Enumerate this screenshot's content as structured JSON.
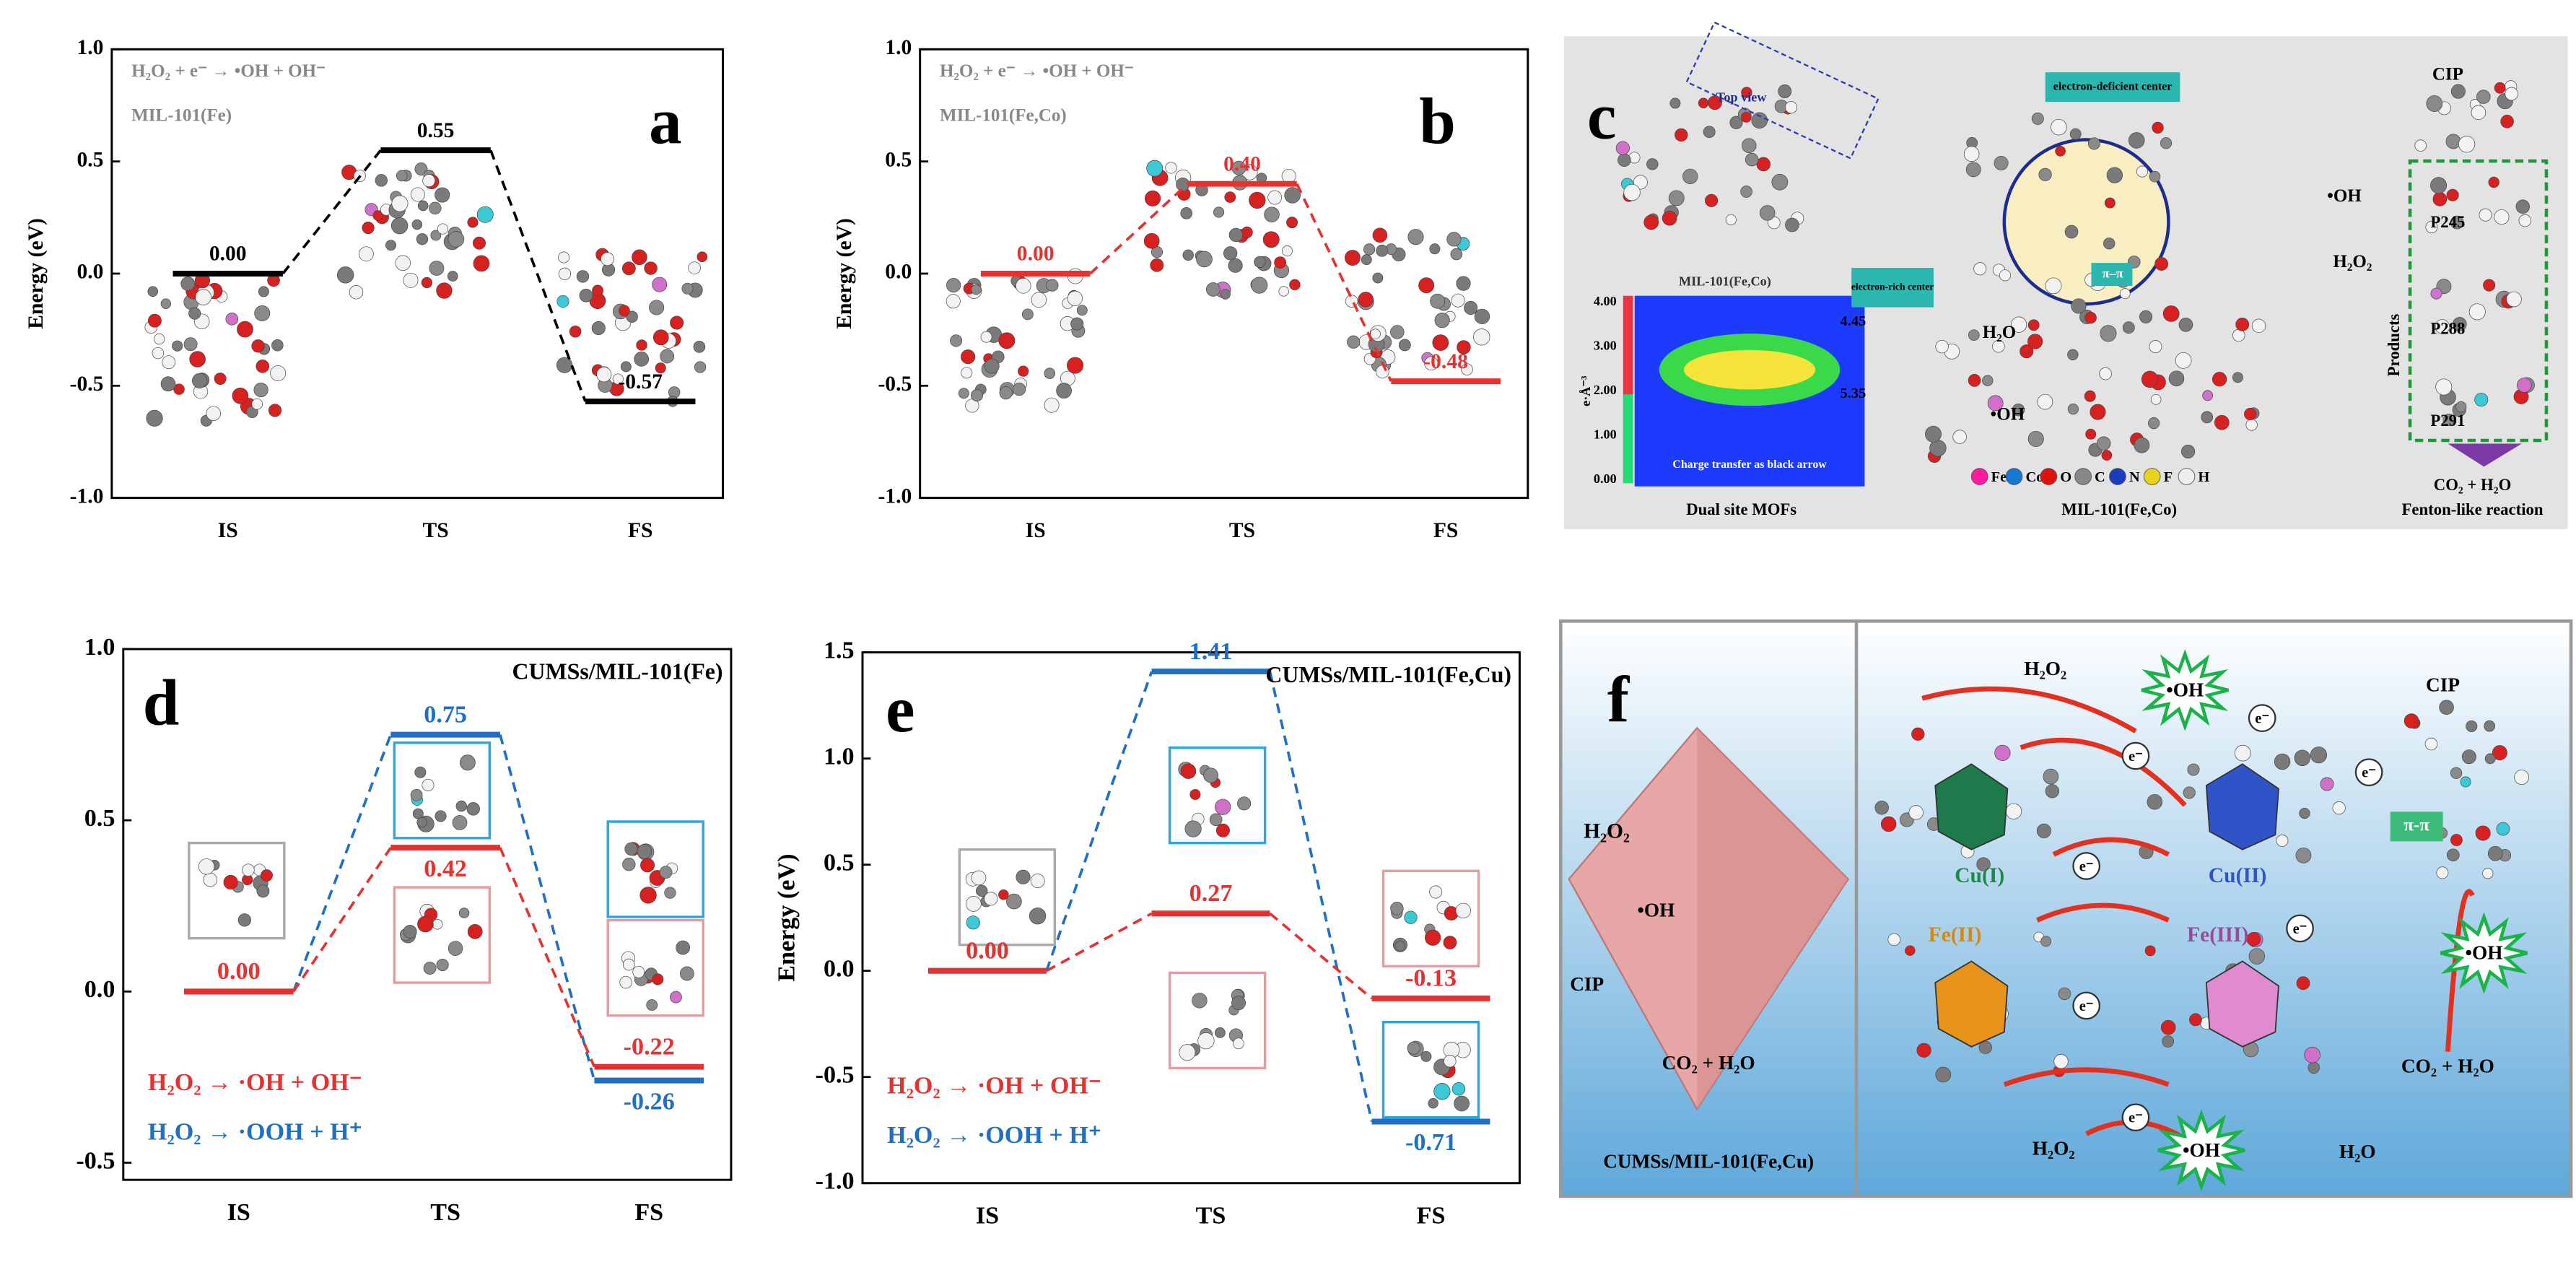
{
  "chart_data": [
    {
      "type": "line",
      "panel_label": "a",
      "y_label": "Energy (eV)",
      "annotations": [
        "H₂O₂ + e⁻ → •OH + OH⁻",
        "MIL-101(Fe)"
      ],
      "categories": [
        "IS",
        "TS",
        "FS"
      ],
      "series": [
        {
          "color": "#000000",
          "values": [
            0,
            0.55,
            -0.57
          ],
          "value_labels": [
            "0.00",
            "0.55",
            "-0.57"
          ]
        }
      ],
      "ylim": [
        -1,
        1
      ],
      "yticks": [
        {
          "value": 1,
          "label": "1.0"
        },
        {
          "value": 0.5,
          "label": "0.5"
        },
        {
          "value": 0,
          "label": "0.0"
        },
        {
          "value": -0.5,
          "label": "-0.5"
        },
        {
          "value": -1,
          "label": "-1.0"
        }
      ]
    },
    {
      "type": "line",
      "panel_label": "b",
      "y_label": "Energy (eV)",
      "annotations": [
        "H₂O₂ + e⁻ → •OH + OH⁻",
        "MIL-101(Fe,Co)"
      ],
      "categories": [
        "IS",
        "TS",
        "FS"
      ],
      "series": [
        {
          "color": "#e8312f",
          "values": [
            0,
            0.4,
            -0.48
          ],
          "value_labels": [
            "0.00",
            "0.40",
            "-0.48"
          ]
        }
      ],
      "ylim": [
        -1,
        1
      ],
      "yticks": [
        {
          "value": 1,
          "label": "1.0"
        },
        {
          "value": 0.5,
          "label": "0.5"
        },
        {
          "value": 0,
          "label": "0.0"
        },
        {
          "value": -0.5,
          "label": "-0.5"
        },
        {
          "value": -1,
          "label": "-1.0"
        }
      ]
    },
    {
      "type": "line",
      "panel_label": "d",
      "title": "CUMSs/MIL-101(Fe)",
      "categories": [
        "IS",
        "TS",
        "FS"
      ],
      "series": [
        {
          "name": "H₂O₂ → ·OH + OH⁻",
          "color": "#e8312f",
          "values": [
            0,
            0.42,
            -0.22
          ],
          "value_labels": [
            "0.00",
            "0.42",
            "-0.22"
          ]
        },
        {
          "name": "H₂O₂ → ·OOH + H⁺",
          "color": "#1f6fc5",
          "values": [
            0,
            0.75,
            -0.26
          ],
          "value_labels": [
            null,
            "0.75",
            "-0.26"
          ]
        }
      ],
      "ylim": [
        -0.55,
        1
      ],
      "yticks": [
        {
          "value": 1,
          "label": "1.0"
        },
        {
          "value": 0.5,
          "label": "0.5"
        },
        {
          "value": 0,
          "label": "0.0"
        },
        {
          "value": -0.5,
          "label": "-0.5"
        }
      ]
    },
    {
      "type": "line",
      "panel_label": "e",
      "title": "CUMSs/MIL-101(Fe,Cu)",
      "y_label": "Energy (eV)",
      "categories": [
        "IS",
        "TS",
        "FS"
      ],
      "series": [
        {
          "name": "H₂O₂ → ·OH + OH⁻",
          "color": "#e8312f",
          "values": [
            0,
            0.27,
            -0.13
          ],
          "value_labels": [
            "0.00",
            "0.27",
            "-0.13"
          ]
        },
        {
          "name": "H₂O₂ → ·OOH + H⁺",
          "color": "#1f6fc5",
          "values": [
            0,
            1.41,
            -0.71
          ],
          "value_labels": [
            null,
            "1.41",
            "-0.71"
          ]
        }
      ],
      "ylim": [
        -1,
        1.5
      ],
      "yticks": [
        {
          "value": 1.5,
          "label": "1.5"
        },
        {
          "value": 1,
          "label": "1.0"
        },
        {
          "value": 0.5,
          "label": "0.5"
        },
        {
          "value": 0,
          "label": "0.0"
        },
        {
          "value": -0.5,
          "label": "-0.5"
        },
        {
          "value": -1,
          "label": "-1.0"
        }
      ]
    }
  ],
  "diagram_c": {
    "panel_label": "c",
    "labels": [
      "Top view",
      "MIL-101(Fe,Co)",
      "electron-deficient center",
      "electron-rich center",
      "4.45",
      "5.35",
      "Charge transfer as black arrow",
      "4.00",
      "3.00",
      "2.00",
      "1.00",
      "0.00",
      "e·Å⁻³",
      "Dual site MOFs",
      "MIL-101(Fe,Co)",
      "Fenton-like reaction",
      "CO₂ + H₂O",
      "CIP",
      "P245",
      "P288",
      "P291",
      "Products",
      "•OH",
      "H₂O₂",
      "H₂O",
      "•OH",
      "π–π"
    ],
    "legend": [
      "Fe",
      "Co",
      "O",
      "C",
      "N",
      "F",
      "H"
    ]
  },
  "diagram_f": {
    "panel_label": "f",
    "labels": [
      "H₂O₂",
      "•OH",
      "CIP",
      "CO₂ + H₂O",
      "CUMSs/MIL-101(Fe,Cu)",
      "H₂O₂",
      "•OH",
      "CIP",
      "π-π",
      "Cu(I)",
      "Cu(II)",
      "Fe(II)",
      "Fe(III)",
      "•OH",
      "CO₂ + H₂O",
      "H₂O₂",
      "•OH",
      "H₂O"
    ],
    "electrons": [
      "e⁻",
      "e⁻",
      "e⁻",
      "e⁻",
      "e⁻",
      "e⁻",
      "e⁻"
    ]
  }
}
